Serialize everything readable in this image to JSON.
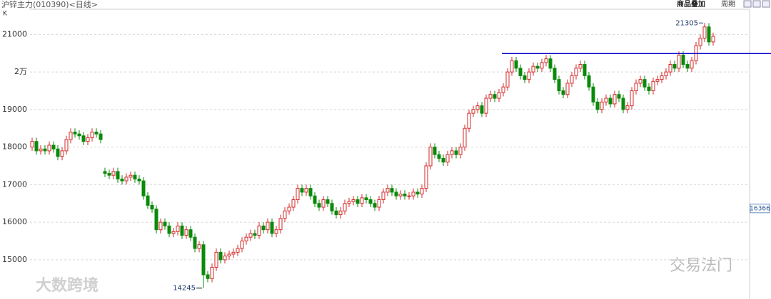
{
  "chart_data": {
    "type": "candlestick",
    "title": "沪锌主力(010390)<日线>",
    "y_label": "K",
    "toolbar": {
      "overlay": "商品叠加",
      "period": "周期"
    },
    "watermarks": [
      "大数跨境",
      "交易法门"
    ],
    "up_color": "#d42a2a",
    "down_color": "#0a8a0a",
    "line_color": "#0000c8",
    "ylim": [
      14050,
      21670
    ],
    "yticks": [
      15000,
      16000,
      17000,
      18000,
      19000,
      {
        "value": 20000,
        "label": "2万"
      },
      21000
    ],
    "grid": true,
    "hline": 20490,
    "max_label": 21305,
    "min_label": 14245,
    "price_tag": 16366,
    "open": [
      18000,
      18150,
      17900,
      17950,
      17900,
      18050,
      17950,
      17750,
      17900,
      18200,
      18400,
      18350,
      18300,
      18150,
      18250,
      18400,
      18350,
      17350,
      17300,
      17250,
      17350,
      17150,
      17100,
      17200,
      17250,
      17150,
      17100,
      16700,
      16450,
      16350,
      15800,
      16000,
      15900,
      15700,
      15750,
      15900,
      15650,
      15800,
      15600,
      15300,
      15400,
      14600,
      14500,
      14800,
      15200,
      15000,
      15100,
      15150,
      15200,
      15300,
      15500,
      15600,
      15700,
      15650,
      15900,
      15800,
      16000,
      15700,
      15800,
      16100,
      16300,
      16400,
      16600,
      16900,
      16800,
      16900,
      16700,
      16500,
      16400,
      16600,
      16500,
      16300,
      16200,
      16300,
      16500,
      16550,
      16600,
      16500,
      16650,
      16600,
      16500,
      16400,
      16600,
      16800,
      16900,
      16800,
      16700,
      16750,
      16700,
      16700,
      16800,
      16750,
      16900,
      17500,
      18000,
      17800,
      17700,
      17600,
      17800,
      17900,
      17800,
      18000,
      18500,
      18900,
      19000,
      19100,
      18900,
      19300,
      19400,
      19300,
      19450,
      19600,
      20000,
      20300,
      20100,
      19900,
      19800,
      20000,
      20150,
      20100,
      20250,
      20350,
      20100,
      19800,
      19500,
      19400,
      19700,
      19900,
      20100,
      20200,
      19900,
      19600,
      19200,
      19000,
      19200,
      19300,
      19150,
      19400,
      19300,
      19000,
      19100,
      19500,
      19700,
      19800,
      19600,
      19500,
      19750,
      19800,
      19900,
      20000,
      20200,
      20100,
      20450,
      20200,
      20100,
      20300,
      20700,
      20900,
      21200,
      20800
    ],
    "high": [
      18250,
      18250,
      18050,
      18050,
      18150,
      18150,
      18050,
      18000,
      18300,
      18500,
      18500,
      18450,
      18400,
      18350,
      18500,
      18500,
      18450,
      17450,
      17400,
      17450,
      17450,
      17250,
      17300,
      17350,
      17350,
      17250,
      17200,
      16800,
      16550,
      16450,
      16100,
      16100,
      16000,
      15850,
      16000,
      16000,
      15900,
      15900,
      15700,
      15500,
      15500,
      14700,
      14900,
      15300,
      15300,
      15200,
      15250,
      15300,
      15400,
      15600,
      15700,
      15800,
      15800,
      16000,
      16000,
      16100,
      16100,
      15900,
      16200,
      16400,
      16500,
      16700,
      17000,
      17000,
      17000,
      17000,
      16800,
      16600,
      16700,
      16700,
      16600,
      16400,
      16400,
      16600,
      16650,
      16700,
      16700,
      16750,
      16750,
      16700,
      16600,
      16700,
      16900,
      17000,
      17000,
      16900,
      16850,
      16850,
      16800,
      16900,
      16900,
      17000,
      17600,
      18100,
      18100,
      17900,
      17800,
      17900,
      18000,
      18000,
      18100,
      18600,
      19000,
      19100,
      19200,
      19200,
      19400,
      19500,
      19500,
      19550,
      19700,
      20100,
      20400,
      20400,
      20200,
      20000,
      20100,
      20250,
      20250,
      20350,
      20450,
      20450,
      20200,
      19900,
      19600,
      19800,
      20000,
      20200,
      20300,
      20300,
      20000,
      19700,
      19300,
      19300,
      19400,
      19400,
      19500,
      19500,
      19400,
      19200,
      19600,
      19800,
      19900,
      19900,
      19700,
      19850,
      19900,
      20000,
      20100,
      20300,
      20300,
      20550,
      20550,
      20300,
      20400,
      20800,
      21000,
      21305,
      21300,
      21050
    ],
    "low": [
      17900,
      17800,
      17800,
      17800,
      17800,
      17850,
      17650,
      17650,
      17800,
      18100,
      18250,
      18200,
      18050,
      18050,
      18150,
      18250,
      18100,
      17200,
      17150,
      17150,
      17050,
      17000,
      17000,
      17100,
      17050,
      17000,
      16600,
      16350,
      16250,
      15700,
      15700,
      15800,
      15600,
      15600,
      15650,
      15550,
      15550,
      15500,
      15200,
      15200,
      14245,
      14400,
      14400,
      14700,
      14900,
      14900,
      15000,
      15050,
      15100,
      15200,
      15400,
      15500,
      15550,
      15550,
      15700,
      15700,
      15600,
      15600,
      15700,
      16000,
      16200,
      16300,
      16500,
      16700,
      16700,
      16600,
      16400,
      16300,
      16300,
      16400,
      16200,
      16100,
      16100,
      16200,
      16400,
      16450,
      16400,
      16400,
      16500,
      16400,
      16300,
      16300,
      16500,
      16700,
      16700,
      16600,
      16600,
      16600,
      16600,
      16600,
      16650,
      16650,
      16800,
      17400,
      17700,
      17600,
      17500,
      17500,
      17700,
      17700,
      17700,
      17900,
      18400,
      18800,
      18900,
      18800,
      18800,
      19200,
      19200,
      19200,
      19350,
      19500,
      19900,
      20000,
      19800,
      19700,
      19700,
      19900,
      20000,
      20000,
      20150,
      20000,
      19700,
      19400,
      19300,
      19300,
      19600,
      19800,
      20000,
      19800,
      19500,
      19100,
      18900,
      18900,
      19100,
      19050,
      19050,
      19200,
      18900,
      18900,
      19000,
      19400,
      19600,
      19500,
      19400,
      19400,
      19650,
      19700,
      19800,
      19900,
      20000,
      20000,
      20100,
      20000,
      20000,
      20200,
      20600,
      20800,
      20700,
      20700
    ],
    "close": [
      18150,
      17900,
      17950,
      17900,
      18050,
      17950,
      17750,
      17900,
      18200,
      18400,
      18350,
      18300,
      18150,
      18250,
      18400,
      18350,
      18200,
      17300,
      17250,
      17350,
      17150,
      17100,
      17200,
      17250,
      17150,
      17100,
      16700,
      16450,
      16350,
      15800,
      16000,
      15900,
      15700,
      15750,
      15900,
      15650,
      15800,
      15600,
      15300,
      15400,
      14600,
      14500,
      14800,
      15200,
      15000,
      15100,
      15150,
      15200,
      15300,
      15500,
      15600,
      15700,
      15650,
      15900,
      15800,
      16000,
      15700,
      15800,
      16100,
      16300,
      16400,
      16600,
      16900,
      16800,
      16900,
      16700,
      16500,
      16400,
      16600,
      16500,
      16300,
      16200,
      16300,
      16500,
      16550,
      16600,
      16500,
      16650,
      16600,
      16500,
      16400,
      16600,
      16800,
      16900,
      16800,
      16700,
      16750,
      16700,
      16700,
      16800,
      16750,
      16900,
      17500,
      18000,
      17800,
      17700,
      17600,
      17800,
      17900,
      17800,
      18000,
      18500,
      18900,
      19000,
      19100,
      18900,
      19300,
      19400,
      19300,
      19450,
      19600,
      20000,
      20300,
      20100,
      19900,
      19800,
      20000,
      20150,
      20100,
      20250,
      20350,
      20100,
      19800,
      19500,
      19400,
      19700,
      19900,
      20100,
      20200,
      19900,
      19600,
      19200,
      19000,
      19200,
      19300,
      19150,
      19400,
      19300,
      19000,
      19100,
      19500,
      19700,
      19800,
      19600,
      19500,
      19750,
      19800,
      19900,
      20000,
      20200,
      20100,
      20450,
      20200,
      20100,
      20300,
      20700,
      20900,
      21200,
      20800,
      20950
    ]
  }
}
